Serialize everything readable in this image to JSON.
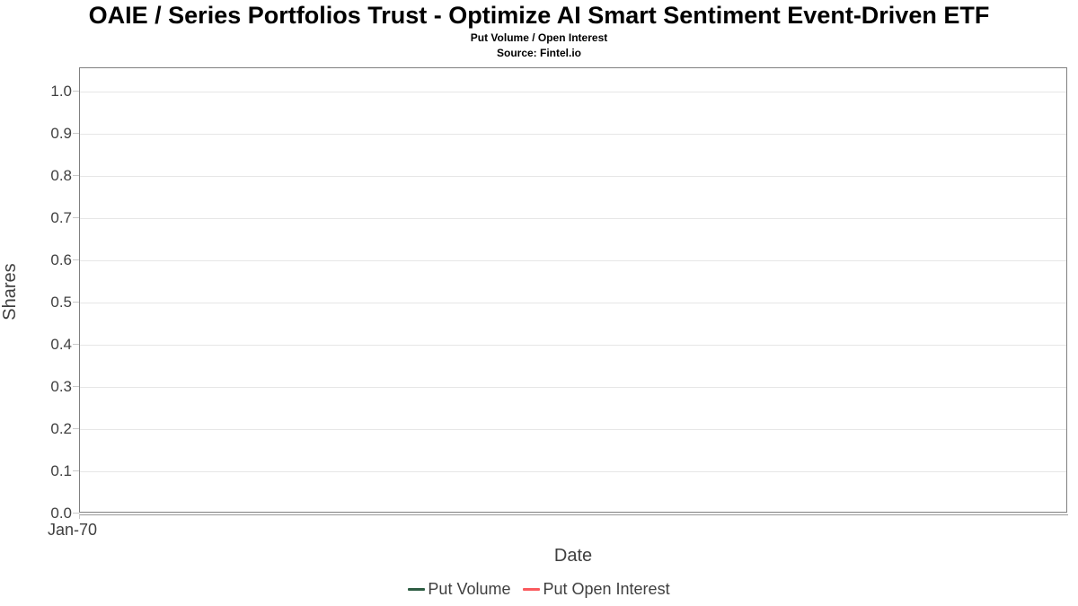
{
  "chart_data": {
    "type": "line",
    "title": "OAIE / Series Portfolios Trust - Optimize AI Smart Sentiment Event-Driven ETF",
    "subtitle": "Put Volume / Open Interest",
    "source": "Source: Fintel.io",
    "xlabel": "Date",
    "ylabel": "Shares",
    "ylim": [
      0.0,
      1.0
    ],
    "ytick_step": 0.1,
    "yticks": [
      "0.0",
      "0.1",
      "0.2",
      "0.3",
      "0.4",
      "0.5",
      "0.6",
      "0.7",
      "0.8",
      "0.9",
      "1.0"
    ],
    "xticks": [
      "Jan-70"
    ],
    "grid": "horizontal",
    "legend_position": "bottom-center",
    "plot_empty": true,
    "series": [
      {
        "name": "Put Volume",
        "color": "#2e5d43",
        "x": [],
        "values": []
      },
      {
        "name": "Put Open Interest",
        "color": "#fa5a5e",
        "x": [],
        "values": []
      }
    ]
  },
  "colors": {
    "plot_border": "#808080",
    "gridline": "#e6e6e6",
    "tick_mark": "#c9c9c9",
    "axis_text": "#3f3f3f",
    "title_text": "#000000",
    "background": "#ffffff"
  }
}
